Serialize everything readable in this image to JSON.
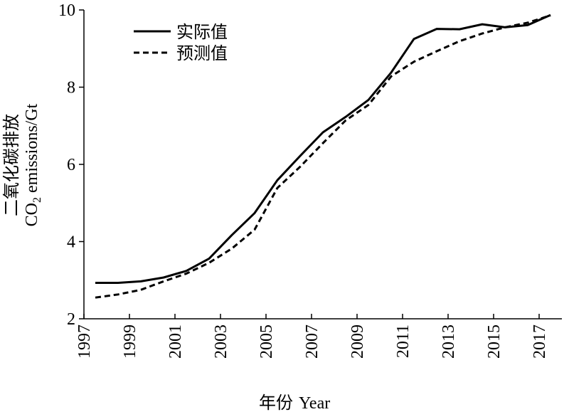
{
  "chart_data": {
    "type": "line",
    "xlabel_cn": "年份",
    "xlabel_en": "Year",
    "ylabel_cn": "二氧化碳排放",
    "ylabel_en_prefix": "CO",
    "ylabel_en_sub": "2",
    "ylabel_en_suffix": " emissions/Gt",
    "xlim": [
      1997,
      2018
    ],
    "ylim": [
      2,
      10
    ],
    "x_ticks": [
      "1997",
      "1999",
      "2001",
      "2003",
      "2005",
      "2007",
      "2009",
      "2011",
      "2013",
      "2015",
      "2017"
    ],
    "y_ticks": [
      "2",
      "4",
      "6",
      "8",
      "10"
    ],
    "legend_position": "top-left",
    "x": [
      1997.5,
      1998.5,
      1999.5,
      2000.5,
      2001.5,
      2002.5,
      2003.5,
      2004.5,
      2005.5,
      2006.5,
      2007.5,
      2008.5,
      2009.5,
      2010.5,
      2011.5,
      2012.5,
      2013.5,
      2014.5,
      2015.5,
      2016.5,
      2017.5
    ],
    "series": [
      {
        "name": "实际值",
        "style": "solid",
        "color": "#000000",
        "values": [
          2.93,
          2.93,
          2.97,
          3.07,
          3.24,
          3.56,
          4.17,
          4.74,
          5.59,
          6.22,
          6.83,
          7.23,
          7.67,
          8.38,
          9.25,
          9.51,
          9.5,
          9.63,
          9.55,
          9.61,
          9.87
        ]
      },
      {
        "name": "预测值",
        "style": "dashed",
        "color": "#000000",
        "values": [
          2.55,
          2.63,
          2.75,
          2.97,
          3.17,
          3.45,
          3.82,
          4.31,
          5.39,
          5.94,
          6.55,
          7.14,
          7.54,
          8.28,
          8.66,
          8.93,
          9.19,
          9.39,
          9.55,
          9.67,
          9.86
        ]
      }
    ]
  }
}
